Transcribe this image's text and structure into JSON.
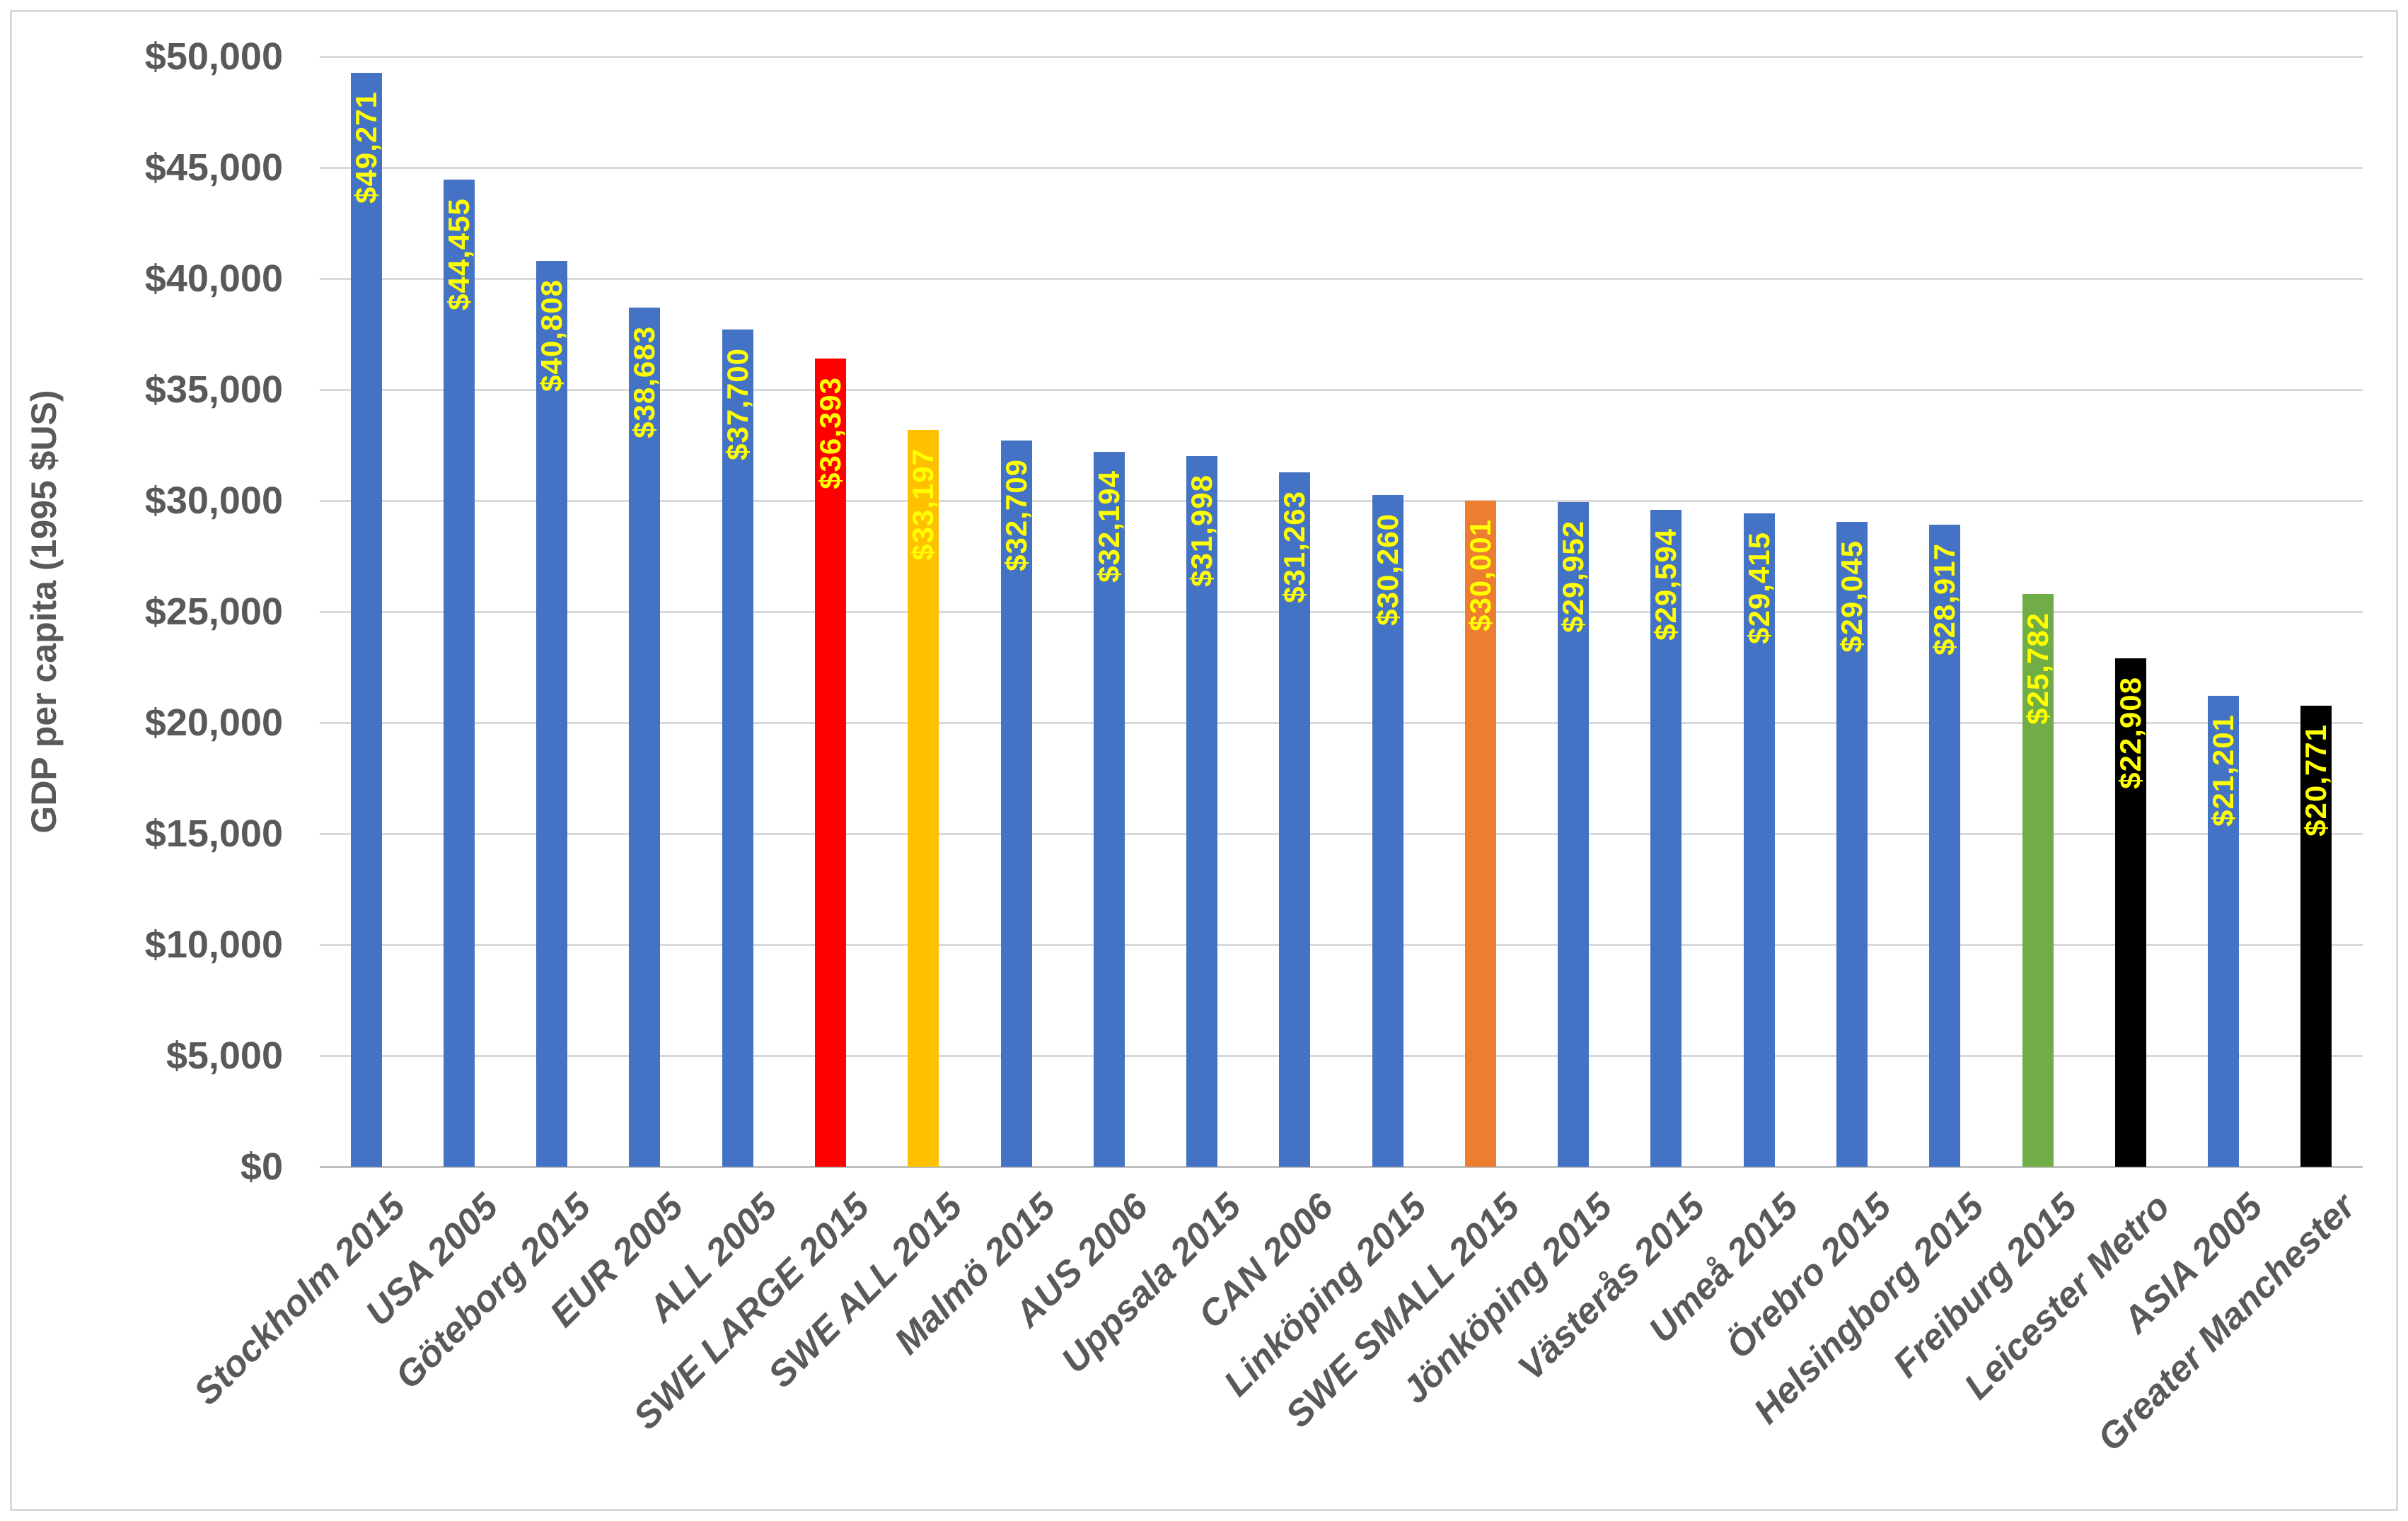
{
  "chart_data": {
    "type": "bar",
    "title": "",
    "xlabel": "",
    "ylabel": "GDP per capita (1995 $US)",
    "ylim": [
      0,
      50000
    ],
    "ytick_interval": 5000,
    "ytick_labels": [
      "$0",
      "$5,000",
      "$10,000",
      "$15,000",
      "$20,000",
      "$25,000",
      "$30,000",
      "$35,000",
      "$40,000",
      "$45,000",
      "$50,000"
    ],
    "grid": "horizontal",
    "legend_position": "none",
    "categories": [
      "Stockholm 2015",
      "USA 2005",
      "Göteborg 2015",
      "EUR 2005",
      "ALL 2005",
      "SWE LARGE 2015",
      "SWE ALL 2015",
      "Malmö 2015",
      "AUS 2006",
      "Uppsala 2015",
      "CAN 2006",
      "Linköping 2015",
      "SWE SMALL 2015",
      "Jönköping 2015",
      "Västerås 2015",
      "Umeå 2015",
      "Örebro 2015",
      "Helsingborg 2015",
      "Freiburg 2015",
      "Leicester Metro",
      "ASIA 2005",
      "Greater Manchester"
    ],
    "values": [
      49271,
      44455,
      40808,
      38683,
      37700,
      36393,
      33197,
      32709,
      32194,
      31998,
      31263,
      30260,
      30001,
      29952,
      29594,
      29415,
      29045,
      28917,
      25782,
      22908,
      21201,
      20771
    ],
    "data_labels": [
      "$49,271",
      "$44,455",
      "$40,808",
      "$38,683",
      "$37,700",
      "$36,393",
      "$33,197",
      "$32,709",
      "$32,194",
      "$31,998",
      "$31,263",
      "$30,260",
      "$30,001",
      "$29,952",
      "$29,594",
      "$29,415",
      "$29,045",
      "$28,917",
      "$25,782",
      "$22,908",
      "$21,201",
      "$20,771"
    ],
    "bar_colors": [
      "#4472C4",
      "#4472C4",
      "#4472C4",
      "#4472C4",
      "#4472C4",
      "#FF0000",
      "#FFC000",
      "#4472C4",
      "#4472C4",
      "#4472C4",
      "#4472C4",
      "#4472C4",
      "#ED7D31",
      "#4472C4",
      "#4472C4",
      "#4472C4",
      "#4472C4",
      "#4472C4",
      "#70AD47",
      "#000000",
      "#4472C4",
      "#000000"
    ],
    "colors": {
      "bar_default": "#4472C4",
      "bar_red": "#FF0000",
      "bar_gold": "#FFC000",
      "bar_orange": "#ED7D31",
      "bar_green": "#70AD47",
      "bar_black": "#000000",
      "data_label": "#FFFF00",
      "axis_text": "#595959",
      "gridline": "#D9D9D9",
      "axis_line": "#BFBFBF",
      "border": "#D9D9D9"
    }
  }
}
